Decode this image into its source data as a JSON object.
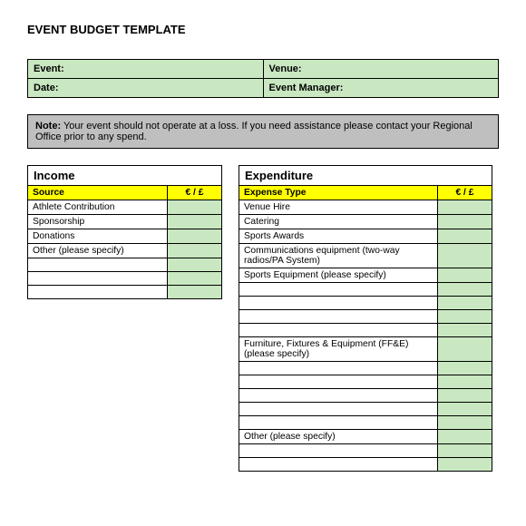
{
  "title": "EVENT BUDGET TEMPLATE",
  "info": {
    "event_label": "Event:",
    "venue_label": "Venue:",
    "date_label": "Date:",
    "manager_label": "Event Manager:"
  },
  "note": {
    "label": "Note:",
    "text": "Your event should not operate at a loss.  If you need assistance please contact your Regional Office prior to any spend."
  },
  "income": {
    "title": "Income",
    "header_source": "Source",
    "header_amount": "€ / £",
    "rows": [
      "Athlete Contribution",
      "Sponsorship",
      "Donations",
      "Other (please specify)",
      "",
      "",
      ""
    ]
  },
  "expenditure": {
    "title": "Expenditure",
    "header_type": "Expense Type",
    "header_amount": "€ / £",
    "rows": [
      {
        "label": "Venue Hire",
        "tall": false
      },
      {
        "label": "Catering",
        "tall": false
      },
      {
        "label": "Sports Awards",
        "tall": false
      },
      {
        "label": "Communications equipment (two-way radios/PA System)",
        "tall": true
      },
      {
        "label": "Sports Equipment (please specify)",
        "tall": false
      },
      {
        "label": "",
        "tall": false
      },
      {
        "label": "",
        "tall": false
      },
      {
        "label": "",
        "tall": false
      },
      {
        "label": "",
        "tall": false
      },
      {
        "label": "Furniture, Fixtures & Equipment (FF&E) (please specify)",
        "tall": true
      },
      {
        "label": "",
        "tall": false
      },
      {
        "label": "",
        "tall": false
      },
      {
        "label": "",
        "tall": false
      },
      {
        "label": "",
        "tall": false
      },
      {
        "label": "",
        "tall": false
      },
      {
        "label": "Other (please specify)",
        "tall": false
      },
      {
        "label": "",
        "tall": false
      },
      {
        "label": "",
        "tall": false
      }
    ]
  }
}
